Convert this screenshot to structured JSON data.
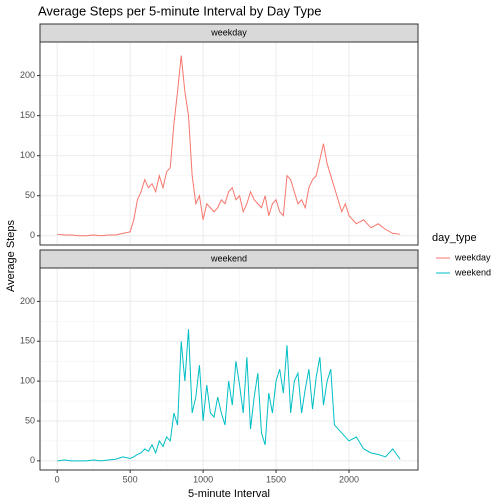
{
  "chart_data": {
    "type": "line",
    "title": "Average Steps per 5-minute Interval by Day Type",
    "xlabel": "5-minute Interval",
    "ylabel": "Average Steps",
    "legend_title": "day_type",
    "legend": "right",
    "grid": true,
    "x": [
      0,
      50,
      100,
      150,
      200,
      250,
      300,
      350,
      400,
      450,
      500,
      525,
      550,
      575,
      600,
      625,
      650,
      675,
      700,
      725,
      750,
      775,
      800,
      825,
      850,
      875,
      900,
      925,
      950,
      975,
      1000,
      1025,
      1050,
      1075,
      1100,
      1125,
      1150,
      1175,
      1200,
      1225,
      1250,
      1275,
      1300,
      1325,
      1350,
      1375,
      1400,
      1425,
      1450,
      1475,
      1500,
      1525,
      1550,
      1575,
      1600,
      1625,
      1650,
      1675,
      1700,
      1725,
      1750,
      1775,
      1800,
      1825,
      1850,
      1875,
      1900,
      1925,
      1950,
      1975,
      2000,
      2050,
      2100,
      2150,
      2200,
      2250,
      2300,
      2350
    ],
    "xlim": [
      -117.75,
      2472.75
    ],
    "xticks": [
      0,
      500,
      1000,
      1500,
      2000
    ],
    "ylim": [
      -11.5,
      241.9
    ],
    "yticks": [
      0,
      50,
      100,
      150,
      200
    ],
    "series": [
      {
        "name": "weekday",
        "color": "#F8766D",
        "values": [
          2,
          1,
          1,
          0,
          0,
          1,
          0,
          1,
          1,
          3,
          5,
          20,
          45,
          55,
          70,
          60,
          65,
          55,
          75,
          60,
          80,
          85,
          140,
          180,
          225,
          180,
          150,
          75,
          40,
          50,
          20,
          40,
          35,
          30,
          35,
          45,
          40,
          55,
          60,
          45,
          50,
          30,
          40,
          55,
          45,
          40,
          35,
          50,
          25,
          40,
          45,
          30,
          25,
          75,
          70,
          55,
          40,
          45,
          35,
          60,
          70,
          75,
          95,
          115,
          90,
          75,
          60,
          45,
          30,
          40,
          25,
          15,
          20,
          10,
          15,
          8,
          3,
          2
        ]
      },
      {
        "name": "weekend",
        "color": "#00BFC4",
        "values": [
          0,
          1,
          0,
          0,
          0,
          1,
          0,
          1,
          2,
          5,
          3,
          5,
          8,
          10,
          15,
          12,
          20,
          10,
          25,
          18,
          30,
          25,
          60,
          45,
          150,
          100,
          165,
          60,
          80,
          120,
          50,
          95,
          60,
          55,
          80,
          60,
          45,
          100,
          70,
          125,
          95,
          60,
          130,
          40,
          80,
          110,
          35,
          20,
          85,
          60,
          100,
          115,
          85,
          145,
          60,
          100,
          110,
          60,
          90,
          115,
          65,
          105,
          130,
          70,
          100,
          115,
          45,
          40,
          35,
          30,
          25,
          30,
          15,
          10,
          8,
          5,
          15,
          2
        ]
      }
    ]
  }
}
